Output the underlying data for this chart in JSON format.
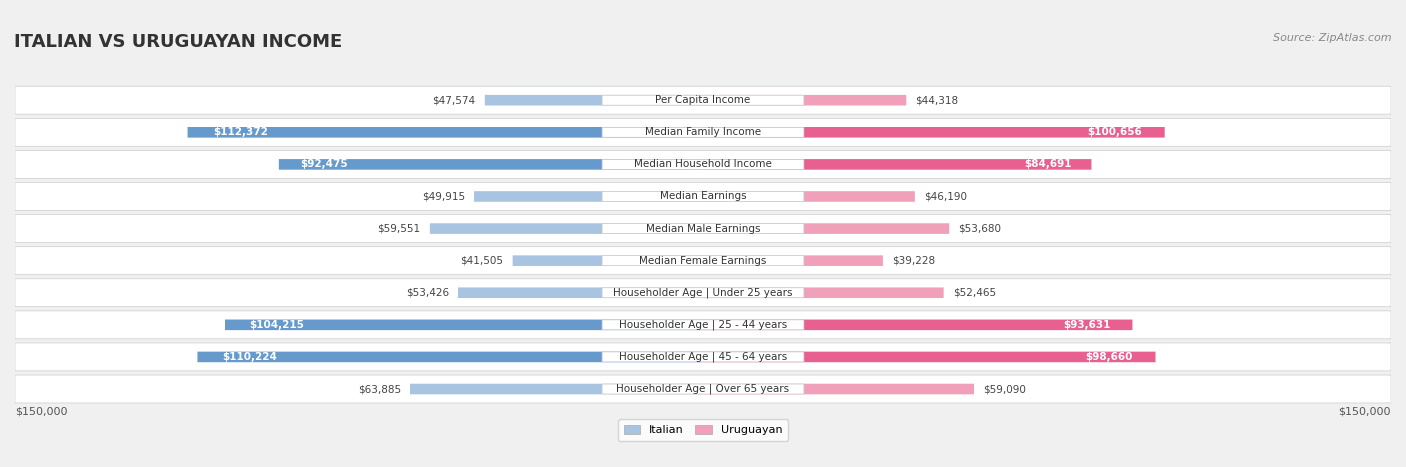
{
  "title": "ITALIAN VS URUGUAYAN INCOME",
  "source": "Source: ZipAtlas.com",
  "categories": [
    "Per Capita Income",
    "Median Family Income",
    "Median Household Income",
    "Median Earnings",
    "Median Male Earnings",
    "Median Female Earnings",
    "Householder Age | Under 25 years",
    "Householder Age | 25 - 44 years",
    "Householder Age | 45 - 64 years",
    "Householder Age | Over 65 years"
  ],
  "italian_values": [
    47574,
    112372,
    92475,
    49915,
    59551,
    41505,
    53426,
    104215,
    110224,
    63885
  ],
  "uruguayan_values": [
    44318,
    100656,
    84691,
    46190,
    53680,
    39228,
    52465,
    93631,
    98660,
    59090
  ],
  "italian_labels": [
    "$47,574",
    "$112,372",
    "$92,475",
    "$49,915",
    "$59,551",
    "$41,505",
    "$53,426",
    "$104,215",
    "$110,224",
    "$63,885"
  ],
  "uruguayan_labels": [
    "$44,318",
    "$100,656",
    "$84,691",
    "$46,190",
    "$53,680",
    "$39,228",
    "$52,465",
    "$93,631",
    "$98,660",
    "$59,090"
  ],
  "max_value": 150000,
  "italian_color_light": "#a8c4e0",
  "italian_color_dark": "#6699cc",
  "uruguayan_color_light": "#f0a0b8",
  "uruguayan_color_dark": "#e86090",
  "bg_color": "#f0f0f0",
  "row_bg": "#ffffff",
  "label_threshold": 80000,
  "x_label_left": "$150,000",
  "x_label_right": "$150,000"
}
